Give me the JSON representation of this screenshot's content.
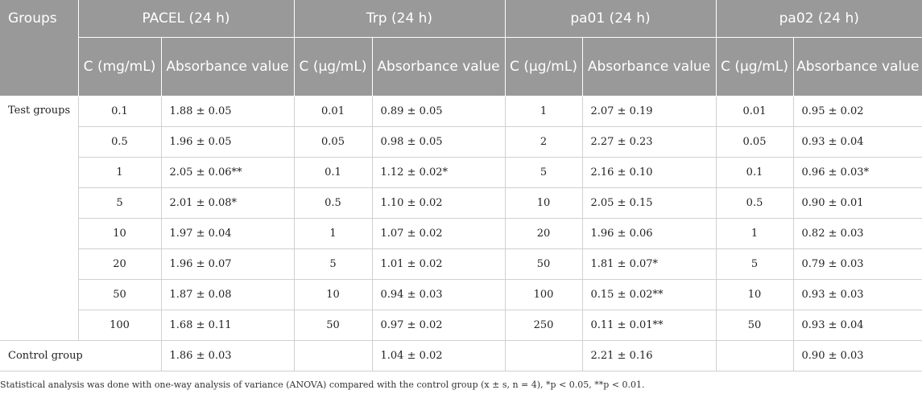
{
  "header": {
    "groups": "Groups",
    "drugs": [
      "PACEL (24 h)",
      "Trp (24 h)",
      "pa01 (24 h)",
      "pa02 (24 h)"
    ],
    "conc_labels": [
      "C (mg/mL)",
      "C (µg/mL)",
      "C (µg/mL)",
      "C (µg/mL)"
    ],
    "value_label": "Absorbance value"
  },
  "test_label": "Test groups",
  "control_label": "Control group",
  "rows": [
    [
      [
        "0.1",
        "1.88 ± 0.05"
      ],
      [
        "0.01",
        "0.89 ± 0.05"
      ],
      [
        "1",
        "2.07 ± 0.19"
      ],
      [
        "0.01",
        "0.95 ± 0.02"
      ]
    ],
    [
      [
        "0.5",
        "1.96 ± 0.05"
      ],
      [
        "0.05",
        "0.98 ± 0.05"
      ],
      [
        "2",
        "2.27 ± 0.23"
      ],
      [
        "0.05",
        "0.93 ± 0.04"
      ]
    ],
    [
      [
        "1",
        "2.05 ± 0.06**"
      ],
      [
        "0.1",
        "1.12 ± 0.02*"
      ],
      [
        "5",
        "2.16 ± 0.10"
      ],
      [
        "0.1",
        "0.96 ± 0.03*"
      ]
    ],
    [
      [
        "5",
        "2.01 ± 0.08*"
      ],
      [
        "0.5",
        "1.10 ± 0.02"
      ],
      [
        "10",
        "2.05 ± 0.15"
      ],
      [
        "0.5",
        "0.90 ± 0.01"
      ]
    ],
    [
      [
        "10",
        "1.97 ± 0.04"
      ],
      [
        "1",
        "1.07 ± 0.02"
      ],
      [
        "20",
        "1.96 ± 0.06"
      ],
      [
        "1",
        "0.82 ± 0.03"
      ]
    ],
    [
      [
        "20",
        "1.96 ± 0.07"
      ],
      [
        "5",
        "1.01 ± 0.02"
      ],
      [
        "50",
        "1.81 ± 0.07*"
      ],
      [
        "5",
        "0.79 ± 0.03"
      ]
    ],
    [
      [
        "50",
        "1.87 ± 0.08"
      ],
      [
        "10",
        "0.94 ± 0.03"
      ],
      [
        "100",
        "0.15 ± 0.02**"
      ],
      [
        "10",
        "0.93 ± 0.03"
      ]
    ],
    [
      [
        "100",
        "1.68 ± 0.11"
      ],
      [
        "50",
        "0.97 ± 0.02"
      ],
      [
        "250",
        "0.11 ± 0.01**"
      ],
      [
        "50",
        "0.93 ± 0.04"
      ]
    ]
  ],
  "control": [
    "1.86 ± 0.03",
    "1.04 ± 0.02",
    "2.21 ± 0.16",
    "0.90 ± 0.03"
  ],
  "footnote": "Statistical analysis was done with one-way analysis of variance (ANOVA) compared with the control group (x ± s, n = 4), *p < 0.05, **p < 0.01."
}
